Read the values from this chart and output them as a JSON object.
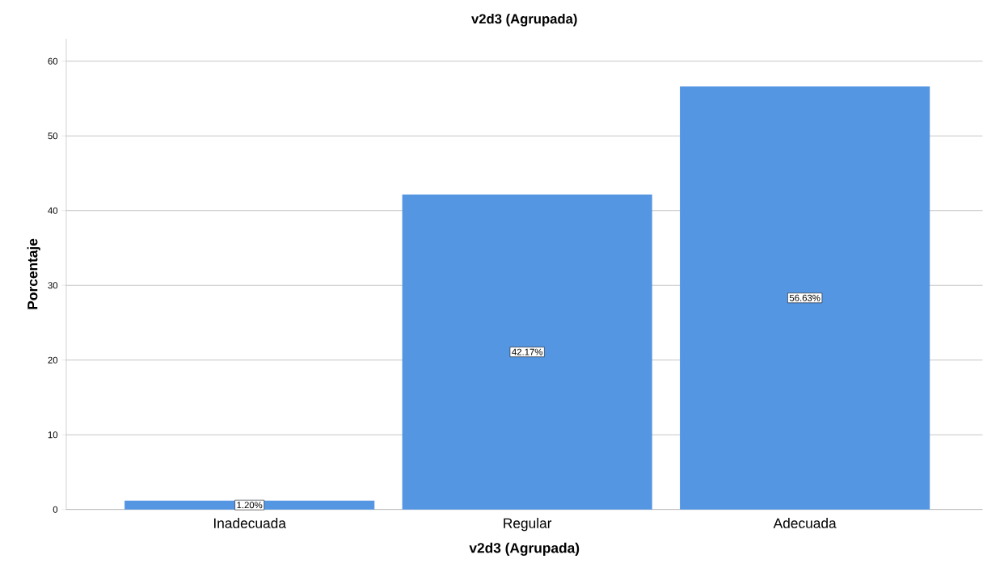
{
  "chart_data": {
    "type": "bar",
    "title": "v2d3 (Agrupada)",
    "xlabel": "v2d3 (Agrupada)",
    "ylabel": "Porcentaje",
    "categories": [
      "Inadecuada",
      "Regular",
      "Adecuada"
    ],
    "values": [
      1.2,
      42.17,
      56.63
    ],
    "value_labels": [
      "1.20%",
      "42.17%",
      "56.63%"
    ],
    "color": "#5596e3",
    "ylim": [
      0,
      63
    ],
    "yticks": [
      0,
      10,
      20,
      30,
      40,
      50,
      60
    ],
    "grid": "y"
  }
}
